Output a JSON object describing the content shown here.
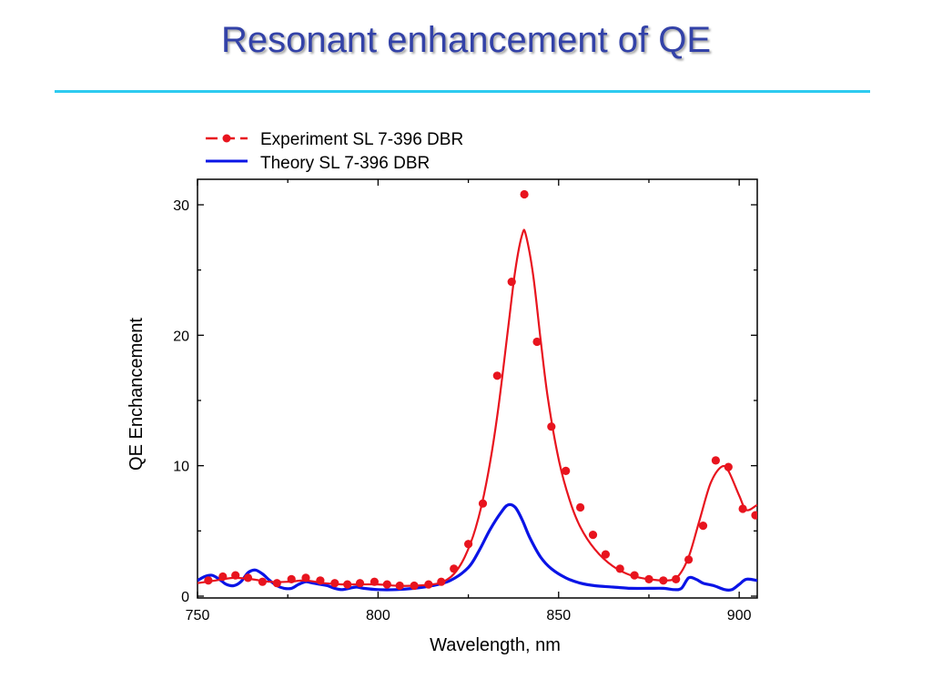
{
  "slide": {
    "title": "Resonant enhancement of QE",
    "title_color": "#3342a8",
    "rule_color": "#2ecbf0"
  },
  "chart_data": {
    "type": "line",
    "xlabel": "Wavelength,  nm",
    "ylabel": "QE Enchancement",
    "xlim": [
      750,
      905
    ],
    "ylim": [
      0,
      32
    ],
    "xticks": [
      750,
      800,
      850,
      900
    ],
    "yticks": [
      0,
      10,
      20,
      30
    ],
    "legend_position": "top",
    "grid": false,
    "series": [
      {
        "name": "Experiment SL 7-396 DBR",
        "color": "#e8141e",
        "style": "line+markers",
        "points": [
          [
            753,
            1.2
          ],
          [
            757,
            1.5
          ],
          [
            760.5,
            1.6
          ],
          [
            764,
            1.4
          ],
          [
            768,
            1.1
          ],
          [
            772,
            1.0
          ],
          [
            776,
            1.3
          ],
          [
            780,
            1.4
          ],
          [
            784,
            1.2
          ],
          [
            788,
            1.0
          ],
          [
            791.5,
            0.9
          ],
          [
            795,
            1.0
          ],
          [
            799,
            1.1
          ],
          [
            802.5,
            0.9
          ],
          [
            806,
            0.8
          ],
          [
            810,
            0.8
          ],
          [
            814,
            0.9
          ],
          [
            817.5,
            1.1
          ],
          [
            821,
            2.1
          ],
          [
            825,
            4.0
          ],
          [
            829,
            7.1
          ],
          [
            833,
            16.9
          ],
          [
            837,
            24.1
          ],
          [
            840.5,
            30.8
          ],
          [
            844,
            19.5
          ],
          [
            848,
            13.0
          ],
          [
            852,
            9.6
          ],
          [
            856,
            6.8
          ],
          [
            859.5,
            4.7
          ],
          [
            863,
            3.2
          ],
          [
            867,
            2.1
          ],
          [
            871,
            1.6
          ],
          [
            875,
            1.3
          ],
          [
            879,
            1.2
          ],
          [
            882.5,
            1.3
          ],
          [
            886,
            2.8
          ],
          [
            890,
            5.4
          ],
          [
            893.5,
            10.4
          ],
          [
            897,
            9.9
          ],
          [
            901,
            6.7
          ],
          [
            904.5,
            6.2
          ]
        ],
        "fit": [
          [
            750,
            1.0
          ],
          [
            755,
            1.2
          ],
          [
            760,
            1.4
          ],
          [
            765,
            1.3
          ],
          [
            770,
            1.1
          ],
          [
            775,
            1.1
          ],
          [
            780,
            1.2
          ],
          [
            785,
            1.0
          ],
          [
            790,
            0.9
          ],
          [
            795,
            0.9
          ],
          [
            800,
            0.9
          ],
          [
            805,
            0.8
          ],
          [
            810,
            0.8
          ],
          [
            815,
            0.9
          ],
          [
            818,
            1.1
          ],
          [
            821,
            1.7
          ],
          [
            824,
            3.0
          ],
          [
            827,
            5.2
          ],
          [
            830,
            8.7
          ],
          [
            833,
            13.8
          ],
          [
            836,
            20.5
          ],
          [
            838,
            25.0
          ],
          [
            840,
            27.8
          ],
          [
            841,
            27.6
          ],
          [
            843,
            24.5
          ],
          [
            845,
            19.7
          ],
          [
            847,
            15.2
          ],
          [
            850,
            10.5
          ],
          [
            853,
            7.4
          ],
          [
            856,
            5.3
          ],
          [
            860,
            3.6
          ],
          [
            865,
            2.3
          ],
          [
            870,
            1.6
          ],
          [
            875,
            1.3
          ],
          [
            880,
            1.2
          ],
          [
            883,
            1.5
          ],
          [
            886,
            3.0
          ],
          [
            889,
            5.8
          ],
          [
            892,
            8.6
          ],
          [
            895,
            9.9
          ],
          [
            897,
            9.6
          ],
          [
            900,
            7.7
          ],
          [
            902,
            6.6
          ],
          [
            905,
            7.0
          ]
        ]
      },
      {
        "name": "Theory SL 7-396 DBR",
        "color": "#0a14e6",
        "style": "line",
        "points": [
          [
            750,
            1.2
          ],
          [
            752,
            1.5
          ],
          [
            754,
            1.6
          ],
          [
            756,
            1.3
          ],
          [
            758,
            0.9
          ],
          [
            760,
            0.8
          ],
          [
            762,
            1.1
          ],
          [
            764,
            1.8
          ],
          [
            766,
            2.0
          ],
          [
            768,
            1.7
          ],
          [
            770,
            1.2
          ],
          [
            772,
            0.8
          ],
          [
            774,
            0.6
          ],
          [
            776,
            0.6
          ],
          [
            778,
            0.9
          ],
          [
            780,
            1.1
          ],
          [
            782,
            1.0
          ],
          [
            784,
            0.9
          ],
          [
            786,
            0.8
          ],
          [
            788,
            0.6
          ],
          [
            790,
            0.5
          ],
          [
            792,
            0.6
          ],
          [
            794,
            0.7
          ],
          [
            796,
            0.6
          ],
          [
            800,
            0.5
          ],
          [
            805,
            0.5
          ],
          [
            810,
            0.6
          ],
          [
            815,
            0.8
          ],
          [
            820,
            1.2
          ],
          [
            825,
            2.2
          ],
          [
            828,
            3.5
          ],
          [
            831,
            5.1
          ],
          [
            834,
            6.4
          ],
          [
            836,
            7.0
          ],
          [
            838,
            6.8
          ],
          [
            840,
            5.8
          ],
          [
            842,
            4.5
          ],
          [
            845,
            3.0
          ],
          [
            848,
            2.1
          ],
          [
            852,
            1.4
          ],
          [
            856,
            1.0
          ],
          [
            860,
            0.8
          ],
          [
            865,
            0.7
          ],
          [
            870,
            0.6
          ],
          [
            875,
            0.6
          ],
          [
            879,
            0.6
          ],
          [
            882,
            0.5
          ],
          [
            884,
            0.6
          ],
          [
            886,
            1.4
          ],
          [
            888,
            1.3
          ],
          [
            890,
            1.0
          ],
          [
            893,
            0.8
          ],
          [
            896,
            0.5
          ],
          [
            898,
            0.5
          ],
          [
            900,
            0.9
          ],
          [
            902,
            1.3
          ],
          [
            905,
            1.2
          ]
        ]
      }
    ]
  }
}
